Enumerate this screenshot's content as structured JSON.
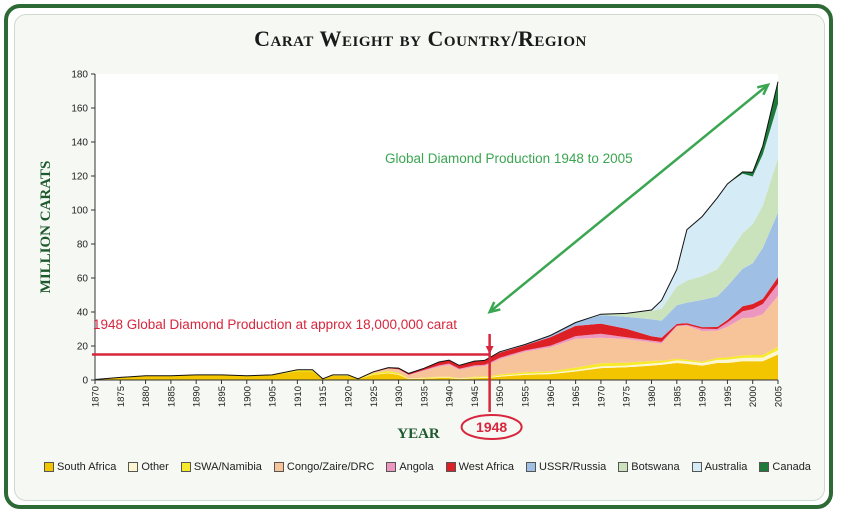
{
  "chart_data": {
    "type": "area",
    "stacked": true,
    "title": "Carat Weight by Country/Region",
    "xlabel": "YEAR",
    "ylabel": "MILLION CARATS",
    "xlim": [
      1870,
      2005
    ],
    "ylim": [
      0,
      180
    ],
    "x_ticks": [
      1870,
      1875,
      1880,
      1885,
      1890,
      1895,
      1900,
      1905,
      1910,
      1915,
      1920,
      1925,
      1930,
      1935,
      1940,
      1945,
      1950,
      1955,
      1960,
      1965,
      1970,
      1975,
      1980,
      1985,
      1990,
      1995,
      2000,
      2005
    ],
    "y_ticks": [
      0,
      20,
      40,
      60,
      80,
      100,
      120,
      140,
      160,
      180
    ],
    "grid": false,
    "legend_position": "bottom",
    "x": [
      1870,
      1875,
      1880,
      1885,
      1890,
      1895,
      1900,
      1905,
      1910,
      1913,
      1915,
      1917,
      1920,
      1922,
      1925,
      1928,
      1930,
      1932,
      1935,
      1938,
      1940,
      1942,
      1945,
      1947,
      1948,
      1950,
      1955,
      1960,
      1965,
      1970,
      1975,
      1980,
      1982,
      1985,
      1987,
      1990,
      1993,
      1995,
      1998,
      2000,
      2002,
      2005
    ],
    "series": [
      {
        "name": "South Africa",
        "color": "#f2c500",
        "values": [
          0.3,
          1.5,
          2.5,
          2.5,
          3,
          3,
          2.5,
          3,
          5,
          5,
          0.5,
          2.5,
          2.5,
          0.5,
          3,
          4,
          3,
          0.5,
          0.8,
          1.2,
          1.2,
          0.5,
          1,
          1.2,
          1.3,
          2,
          3,
          3.5,
          5,
          7,
          7.5,
          8.5,
          9,
          10,
          9.5,
          8.5,
          10,
          10,
          11,
          11,
          11,
          15
        ]
      },
      {
        "name": "Other",
        "color": "#fdf6d2",
        "values": [
          0,
          0,
          0,
          0,
          0,
          0,
          0,
          0,
          0,
          0,
          0,
          0,
          0,
          0,
          0.2,
          0.3,
          0.3,
          0.2,
          0.3,
          0.3,
          0.3,
          0.3,
          0.4,
          0.4,
          0.4,
          0.5,
          0.6,
          0.7,
          0.8,
          1,
          1,
          1.2,
          1.2,
          1.5,
          1.5,
          1.5,
          1.8,
          2,
          2,
          2.2,
          2.2,
          2.5
        ]
      },
      {
        "name": "SWA/Namibia",
        "color": "#f6ea2a",
        "values": [
          0,
          0,
          0,
          0,
          0,
          0,
          0,
          0,
          1,
          1,
          0.2,
          0.5,
          0.5,
          0.2,
          0.8,
          1,
          0.8,
          0.2,
          0.3,
          0.4,
          0.4,
          0.2,
          0.5,
          0.6,
          0.6,
          0.8,
          1,
          1,
          1.5,
          1.8,
          1.7,
          1.5,
          1.2,
          1,
          1,
          0.8,
          1.2,
          1.3,
          1.4,
          1.5,
          1.5,
          2
        ]
      },
      {
        "name": "Congo/Zaire/DRC",
        "color": "#f7c49a",
        "values": [
          0,
          0,
          0,
          0,
          0,
          0,
          0,
          0,
          0,
          0,
          0,
          0,
          0,
          0,
          0.5,
          1.5,
          2,
          2,
          4,
          6,
          7,
          5,
          6,
          6,
          7,
          9,
          12,
          14,
          17,
          15,
          14,
          11,
          10,
          19,
          20,
          18,
          16,
          18,
          22,
          22,
          24,
          30
        ]
      },
      {
        "name": "Angola",
        "color": "#ec97c0",
        "values": [
          0,
          0,
          0,
          0,
          0,
          0,
          0,
          0,
          0,
          0,
          0,
          0,
          0,
          0,
          0,
          0,
          0.2,
          0.2,
          0.5,
          0.7,
          0.8,
          0.6,
          0.7,
          0.8,
          0.8,
          0.8,
          0.8,
          1,
          1.5,
          2.4,
          1,
          1,
          1,
          0.5,
          0.5,
          1.3,
          1,
          2.5,
          4,
          5,
          6,
          7
        ]
      },
      {
        "name": "West Africa",
        "color": "#dd1f26",
        "values": [
          0,
          0,
          0,
          0,
          0,
          0,
          0,
          0,
          0,
          0,
          0,
          0,
          0,
          0,
          0.3,
          0.5,
          0.7,
          0.8,
          1,
          2,
          2,
          2,
          2.5,
          2.5,
          3,
          3,
          3,
          5,
          6,
          6,
          5,
          2.5,
          2.5,
          1,
          1,
          1,
          1.2,
          1.5,
          3,
          3,
          3,
          4
        ]
      },
      {
        "name": "USSR/Russia",
        "color": "#9fbfe5",
        "values": [
          0,
          0,
          0,
          0,
          0,
          0,
          0,
          0,
          0,
          0,
          0,
          0,
          0,
          0,
          0,
          0,
          0,
          0,
          0,
          0,
          0,
          0,
          0,
          0,
          0,
          0.5,
          0.5,
          1,
          2,
          5,
          7,
          10,
          10,
          11,
          12,
          16,
          18,
          20,
          22,
          24,
          30,
          38
        ]
      },
      {
        "name": "Botswana",
        "color": "#cbe3bd",
        "values": [
          0,
          0,
          0,
          0,
          0,
          0,
          0,
          0,
          0,
          0,
          0,
          0,
          0,
          0,
          0,
          0,
          0,
          0,
          0,
          0,
          0,
          0,
          0,
          0,
          0,
          0,
          0,
          0,
          0,
          0.5,
          2,
          5,
          7,
          11,
          13,
          14,
          16,
          18,
          21,
          23,
          25,
          32
        ]
      },
      {
        "name": "Australia",
        "color": "#d5ebf6",
        "values": [
          0,
          0,
          0,
          0,
          0,
          0,
          0,
          0,
          0,
          0,
          0,
          0,
          0,
          0,
          0,
          0,
          0,
          0,
          0,
          0,
          0,
          0,
          0,
          0,
          0,
          0,
          0,
          0,
          0,
          0,
          0,
          0.5,
          5,
          10,
          30,
          35,
          42,
          42,
          35,
          28,
          30,
          32
        ]
      },
      {
        "name": "Canada",
        "color": "#1d7a3a",
        "values": [
          0,
          0,
          0,
          0,
          0,
          0,
          0,
          0,
          0,
          0,
          0,
          0,
          0,
          0,
          0,
          0,
          0,
          0,
          0,
          0,
          0,
          0,
          0,
          0,
          0,
          0,
          0,
          0,
          0,
          0,
          0,
          0,
          0,
          0,
          0,
          0,
          0,
          0,
          1,
          2.5,
          5,
          13
        ]
      }
    ],
    "annotations": [
      {
        "text": "Global Diamond Production 1948 to 2005",
        "color": "#3aa651",
        "from": [
          1948,
          40
        ],
        "to": [
          2005,
          176
        ]
      },
      {
        "text": "1948 Global Diamond Production at approx 18,000,000 carat",
        "color": "#d7263d",
        "y": 15,
        "x_end": 1948
      },
      {
        "text": "1948",
        "color": "#d7263d",
        "x": 1948
      }
    ]
  }
}
